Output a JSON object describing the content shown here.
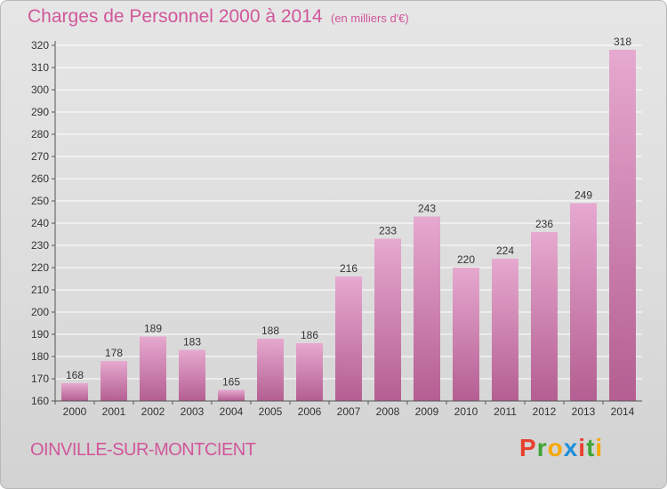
{
  "title": "Charges de Personnel 2000 à 2014",
  "subtitle": "(en milliers d'€)",
  "commune": "OINVILLE-SUR-MONTCIENT",
  "logo": {
    "letters": [
      "P",
      "r",
      "o",
      "x",
      "i",
      "t",
      "i"
    ],
    "colors": [
      "#e8402f",
      "#3fa535",
      "#f6a800",
      "#1c8fd8",
      "#e8402f",
      "#3fa535",
      "#f6a800"
    ]
  },
  "colors": {
    "accent": "#d0579a",
    "bar_light": "#e6a9cf",
    "bar_dark": "#b45e92"
  },
  "chart_data": {
    "type": "bar",
    "categories": [
      "2000",
      "2001",
      "2002",
      "2003",
      "2004",
      "2005",
      "2006",
      "2007",
      "2008",
      "2009",
      "2010",
      "2011",
      "2012",
      "2013",
      "2014"
    ],
    "values": [
      168,
      178,
      189,
      183,
      165,
      188,
      186,
      216,
      233,
      243,
      220,
      224,
      236,
      249,
      318
    ],
    "ylim": [
      160,
      320
    ],
    "yticks": [
      160,
      170,
      180,
      190,
      200,
      210,
      220,
      230,
      240,
      250,
      260,
      270,
      280,
      290,
      300,
      310,
      320
    ],
    "grid": true
  }
}
